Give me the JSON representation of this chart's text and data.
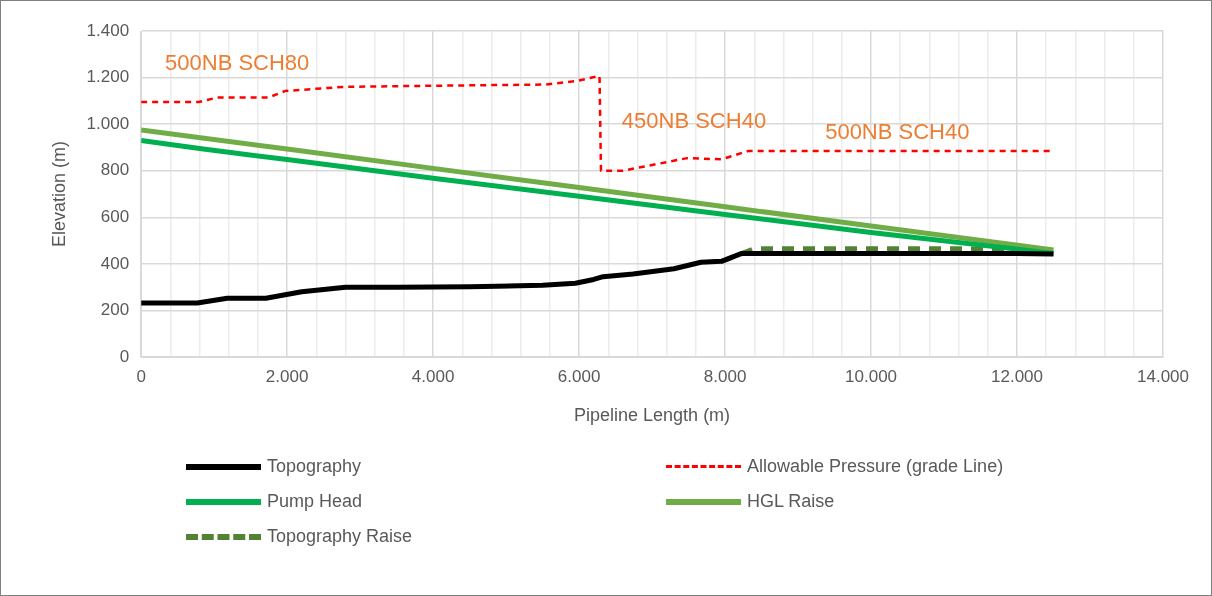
{
  "chart_data": {
    "type": "line",
    "xlabel": "Pipeline Length (m)",
    "ylabel": "Elevation (m)",
    "xlim": [
      0,
      14000
    ],
    "xticks": [
      0,
      {
        "value": 400,
        "label": null
      },
      {
        "value": 800,
        "label": null
      },
      {
        "value": 1200,
        "label": null
      },
      {
        "value": 1600,
        "label": null
      },
      {
        "value": 2000,
        "label": "2.000"
      },
      {
        "value": 2400,
        "label": null
      },
      {
        "value": 2800,
        "label": null
      },
      {
        "value": 3200,
        "label": null
      },
      {
        "value": 3600,
        "label": null
      },
      {
        "value": 4000,
        "label": "4.000"
      },
      {
        "value": 4400,
        "label": null
      },
      {
        "value": 4800,
        "label": null
      },
      {
        "value": 5200,
        "label": null
      },
      {
        "value": 5600,
        "label": null
      },
      {
        "value": 6000,
        "label": "6.000"
      },
      {
        "value": 6400,
        "label": null
      },
      {
        "value": 6800,
        "label": null
      },
      {
        "value": 7200,
        "label": null
      },
      {
        "value": 7600,
        "label": null
      },
      {
        "value": 8000,
        "label": "8.000"
      },
      {
        "value": 8400,
        "label": null
      },
      {
        "value": 8800,
        "label": null
      },
      {
        "value": 9200,
        "label": null
      },
      {
        "value": 9600,
        "label": null
      },
      {
        "value": 10000,
        "label": "10.000"
      },
      {
        "value": 10400,
        "label": null
      },
      {
        "value": 10800,
        "label": null
      },
      {
        "value": 11200,
        "label": null
      },
      {
        "value": 11600,
        "label": null
      },
      {
        "value": 12000,
        "label": "12.000"
      },
      {
        "value": 12400,
        "label": null
      },
      {
        "value": 12800,
        "label": null
      },
      {
        "value": 13200,
        "label": null
      },
      {
        "value": 13600,
        "label": null
      },
      {
        "value": 14000,
        "label": "14.000"
      }
    ],
    "ylim": [
      0,
      1400
    ],
    "yticks": [
      0,
      200,
      400,
      600,
      800,
      {
        "value": 1000,
        "label": "1.000"
      },
      {
        "value": 1200,
        "label": "1.200"
      },
      {
        "value": 1400,
        "label": "1.400"
      }
    ],
    "grid": true,
    "legend": "bottom",
    "marker": "none",
    "series": [
      {
        "name": "Topography",
        "color": "#000000",
        "line_style": "solid",
        "x": [
          0,
          770,
          1180,
          1710,
          2200,
          2800,
          3500,
          4500,
          5500,
          5950,
          6200,
          6330,
          6740,
          7300,
          7670,
          7950,
          8230,
          9000,
          10000,
          11000,
          12000,
          12500
        ],
        "values": [
          232,
          232,
          252,
          252,
          280,
          300,
          300,
          302,
          308,
          317,
          333,
          345,
          356,
          379,
          407,
          411,
          445,
          445,
          445,
          445,
          445,
          442
        ]
      },
      {
        "name": "Allowable Pressure (grade Line)",
        "color": "#ff0000",
        "line_style": "dashed",
        "x": [
          0,
          790,
          1040,
          1740,
          1970,
          2760,
          4000,
          5540,
          5960,
          6280,
          6300,
          6600,
          7480,
          7950,
          8320,
          9000,
          10000,
          11000,
          12470
        ],
        "values": [
          1095,
          1095,
          1114,
          1114,
          1142,
          1160,
          1165,
          1170,
          1185,
          1207,
          800,
          800,
          854,
          849,
          885,
          885,
          885,
          885,
          885
        ]
      },
      {
        "name": "Pump Head",
        "color": "#00b050",
        "line_style": "solid",
        "x": [
          0,
          800,
          2000,
          4000,
          6000,
          8000,
          10000,
          12500
        ],
        "values": [
          930,
          895,
          848,
          768,
          690,
          612,
          535,
          445
        ]
      },
      {
        "name": "HGL Raise",
        "color": "#70ad47",
        "line_style": "solid",
        "x": [
          0,
          2000,
          4000,
          6000,
          8000,
          10000,
          12500
        ],
        "values": [
          975,
          893,
          810,
          728,
          645,
          563,
          460
        ]
      },
      {
        "name": "Topography Raise",
        "color": "#548235",
        "line_style": "dashed",
        "x": [
          7950,
          8400,
          9000,
          10000,
          11000,
          12000,
          12500
        ],
        "values": [
          410,
          465,
          465,
          465,
          465,
          463,
          458
        ]
      }
    ],
    "annotations": [
      "500NB SCH80",
      "450NB SCH40",
      "500NB SCH40"
    ]
  }
}
